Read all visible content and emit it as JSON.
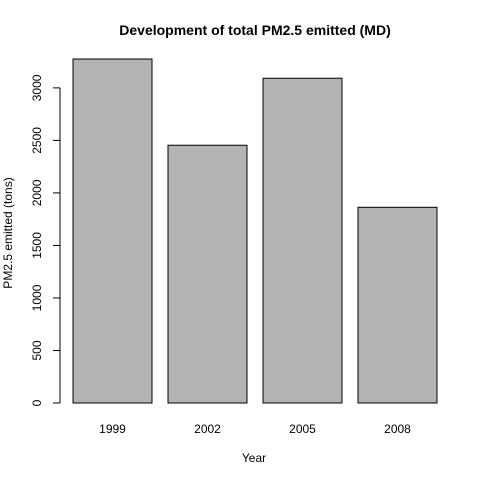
{
  "chart_data": {
    "type": "bar",
    "title": "Development of total PM2.5 emitted (MD)",
    "xlabel": "Year",
    "ylabel": "PM2.5 emitted (tons)",
    "categories": [
      "1999",
      "2002",
      "2005",
      "2008"
    ],
    "values": [
      3275,
      2454,
      3092,
      1863
    ],
    "ylim": [
      0,
      3275
    ],
    "yticks": [
      0,
      500,
      1000,
      1500,
      2000,
      2500,
      3000
    ],
    "grid": false,
    "legend": "none",
    "colors": {
      "bar_fill": "#b3b3b3",
      "bar_stroke": "#000000",
      "axis": "#000000",
      "text": "#000000"
    }
  }
}
